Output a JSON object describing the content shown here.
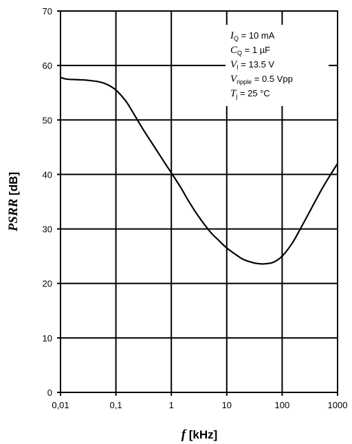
{
  "chart_data": {
    "type": "line",
    "x_scale": "log",
    "xlim": [
      0.01,
      1000
    ],
    "ylim": [
      0,
      70
    ],
    "grid": true,
    "x_ticks": [
      {
        "value": 0.01,
        "label": "0,01"
      },
      {
        "value": 0.1,
        "label": "0,1"
      },
      {
        "value": 1,
        "label": "1"
      },
      {
        "value": 10,
        "label": "10"
      },
      {
        "value": 100,
        "label": "100"
      },
      {
        "value": 1000,
        "label": "1000"
      }
    ],
    "y_ticks": [
      {
        "value": 0,
        "label": "0"
      },
      {
        "value": 10,
        "label": "10"
      },
      {
        "value": 20,
        "label": "20"
      },
      {
        "value": 30,
        "label": "30"
      },
      {
        "value": 40,
        "label": "40"
      },
      {
        "value": 50,
        "label": "50"
      },
      {
        "value": 60,
        "label": "60"
      },
      {
        "value": 70,
        "label": "70"
      }
    ],
    "xlabel": {
      "symbol": "f",
      "unit": " [kHz]"
    },
    "ylabel": {
      "symbol": "PSRR",
      "unit": " [dB]"
    },
    "annotations": [
      {
        "sym": "I",
        "sub": "Q",
        "text": " = 10 mA"
      },
      {
        "sym": "C",
        "sub": "Q",
        "text": " = 1 µF"
      },
      {
        "sym": "V",
        "sub": "I",
        "text": " = 13.5 V"
      },
      {
        "sym": "V",
        "sub": "ripple",
        "text": " = 0.5 Vpp"
      },
      {
        "sym": "T",
        "sub": "j",
        "text": " = 25 °C"
      }
    ],
    "series": [
      {
        "x": [
          0.01,
          0.013,
          0.02,
          0.03,
          0.05,
          0.07,
          0.1,
          0.15,
          0.2,
          0.3,
          0.5,
          0.7,
          1,
          1.5,
          2,
          3,
          5,
          7,
          10,
          15,
          20,
          30,
          40,
          50,
          70,
          100,
          150,
          200,
          300,
          500,
          700,
          1000
        ],
        "y": [
          57.8,
          57.5,
          57.4,
          57.3,
          57.0,
          56.5,
          55.5,
          53.5,
          51.5,
          48.5,
          45.0,
          42.7,
          40.3,
          37.5,
          35.3,
          32.5,
          29.5,
          28.0,
          26.5,
          25.2,
          24.4,
          23.8,
          23.6,
          23.6,
          23.9,
          25.0,
          27.3,
          29.5,
          32.8,
          37.0,
          39.5,
          42.0
        ]
      }
    ]
  }
}
